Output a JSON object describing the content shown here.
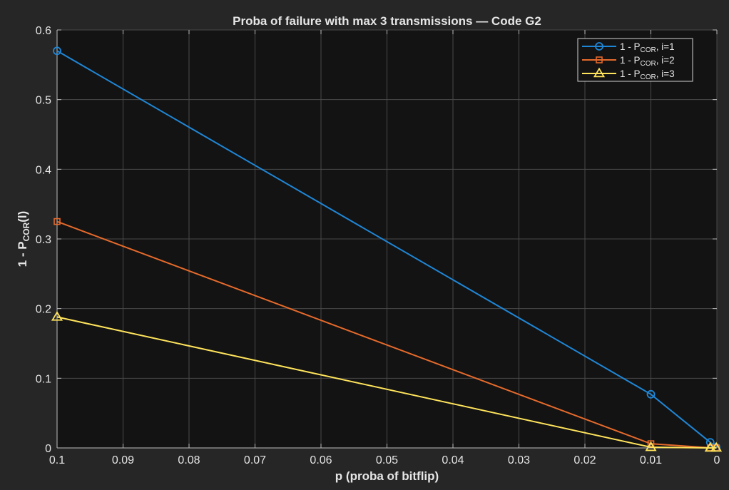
{
  "chart_data": {
    "type": "line",
    "title": "Proba of failure with max 3 transmissions — Code G2",
    "xlabel": "p (proba of bitflip)",
    "ylabel": {
      "prefix": "1  -  P",
      "sub": "COR",
      "suffix": "(l)"
    },
    "x_reversed": true,
    "xlim": [
      0,
      0.1
    ],
    "ylim": [
      0,
      0.6
    ],
    "x_ticks": [
      0.1,
      0.09,
      0.08,
      0.07,
      0.06,
      0.05,
      0.04,
      0.03,
      0.02,
      0.01,
      0
    ],
    "x_tick_labels": [
      "0.1",
      "0.09",
      "0.08",
      "0.07",
      "0.06",
      "0.05",
      "0.04",
      "0.03",
      "0.02",
      "0.01",
      "0"
    ],
    "y_ticks": [
      0,
      0.1,
      0.2,
      0.3,
      0.4,
      0.5,
      0.6
    ],
    "y_tick_labels": [
      "0",
      "0.1",
      "0.2",
      "0.3",
      "0.4",
      "0.5",
      "0.6"
    ],
    "grid": true,
    "legend_position": "top-right",
    "x": [
      0.1,
      0.01,
      0.001,
      0.0001
    ],
    "series": [
      {
        "legend": {
          "prefix": "1  -  P",
          "sub": "COR",
          "suffix": ",  i=1"
        },
        "color": "#1f86d6",
        "marker": "circle",
        "values": [
          0.57,
          0.077,
          0.008,
          0.0008
        ]
      },
      {
        "legend": {
          "prefix": "1  -  P",
          "sub": "COR",
          "suffix": ",  i=2"
        },
        "color": "#e66a2c",
        "marker": "square",
        "values": [
          0.325,
          0.006,
          0.0001,
          1e-05
        ]
      },
      {
        "legend": {
          "prefix": "1  -  P",
          "sub": "COR",
          "suffix": ",  i=3"
        },
        "color": "#ffe45c",
        "marker": "triangle",
        "values": [
          0.188,
          0.001,
          1e-05,
          1e-06
        ]
      }
    ]
  },
  "colors": {
    "page_background": "#262626",
    "plot_background": "#131313",
    "grid": "#4a4a4a",
    "axis": "#bdbdbd",
    "text": "#e6e6e6"
  }
}
